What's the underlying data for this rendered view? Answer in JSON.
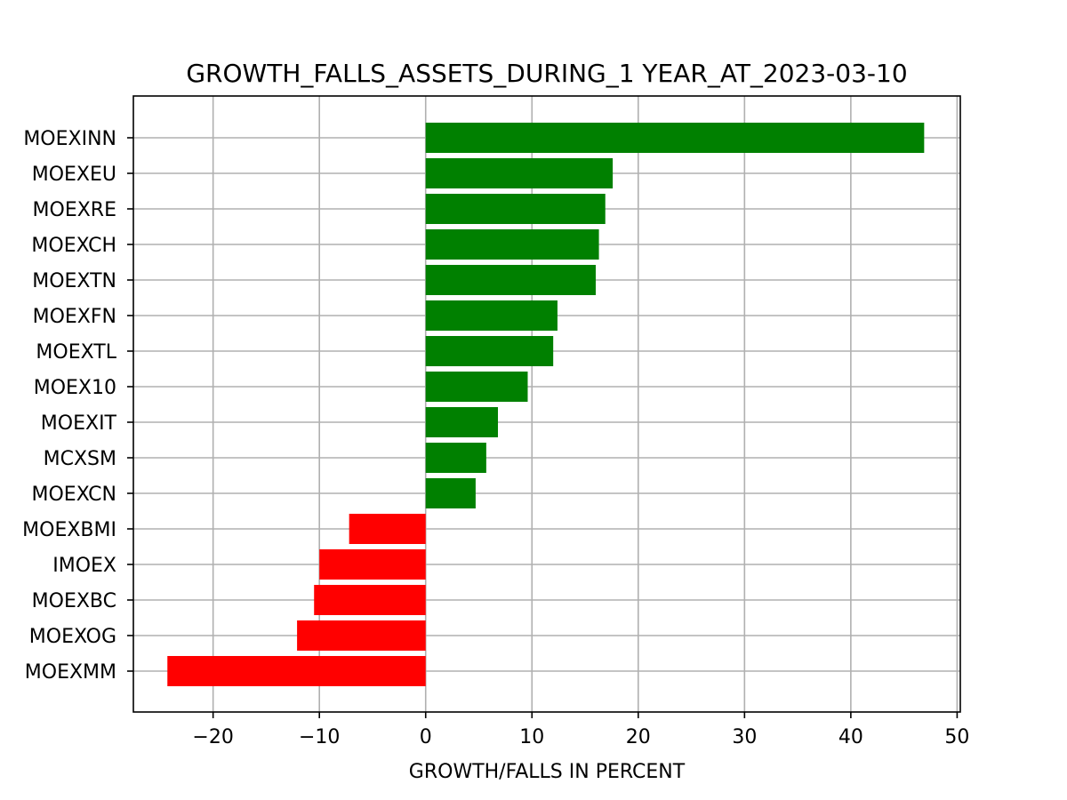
{
  "chart_data": {
    "type": "bar",
    "orientation": "horizontal",
    "title": "GROWTH_FALLS_ASSETS_DURING_1 YEAR_AT_2023-03-10",
    "xlabel": "GROWTH/FALLS IN PERCENT",
    "ylabel": "",
    "xlim": [
      -27.5,
      50.3
    ],
    "xticks": [
      -20,
      -10,
      0,
      10,
      20,
      30,
      40,
      50
    ],
    "xtick_labels": [
      "−20",
      "−10",
      "0",
      "10",
      "20",
      "30",
      "40",
      "50"
    ],
    "grid": true,
    "legend": "none",
    "categories": [
      "MOEXINN",
      "MOEXEU",
      "MOEXRE",
      "MOEXCH",
      "MOEXTN",
      "MOEXFN",
      "MOEXTL",
      "MOEX10",
      "MOEXIT",
      "MCXSM",
      "MOEXCN",
      "MOEXBMI",
      "IMOEX",
      "MOEXBC",
      "MOEXOG",
      "MOEXMM"
    ],
    "values": [
      46.9,
      17.6,
      16.9,
      16.3,
      16.0,
      12.4,
      12.0,
      9.6,
      6.8,
      5.7,
      4.7,
      -7.2,
      -10.0,
      -10.5,
      -12.1,
      -24.3
    ],
    "positive_color": "#008000",
    "negative_color": "#ff0000"
  }
}
